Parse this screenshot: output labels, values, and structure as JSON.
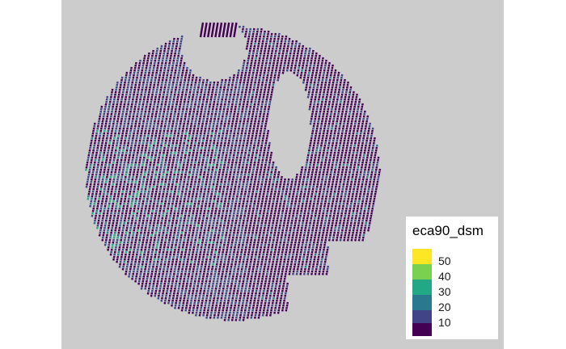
{
  "map": {
    "background_color": "#cccccc",
    "field_shape": "circular plot",
    "pattern": "diagonal swath strips",
    "dominant_color": "#440154"
  },
  "legend": {
    "title": "eca90_dsm",
    "placement": "bottom-right",
    "entries": [
      {
        "label": "50",
        "color": "#fde725"
      },
      {
        "label": "40",
        "color": "#7ad151"
      },
      {
        "label": "30",
        "color": "#22a884"
      },
      {
        "label": "20",
        "color": "#2a788e"
      },
      {
        "label": "10",
        "color": "#414487"
      },
      {
        "label": "",
        "color": "#440154"
      }
    ]
  }
}
